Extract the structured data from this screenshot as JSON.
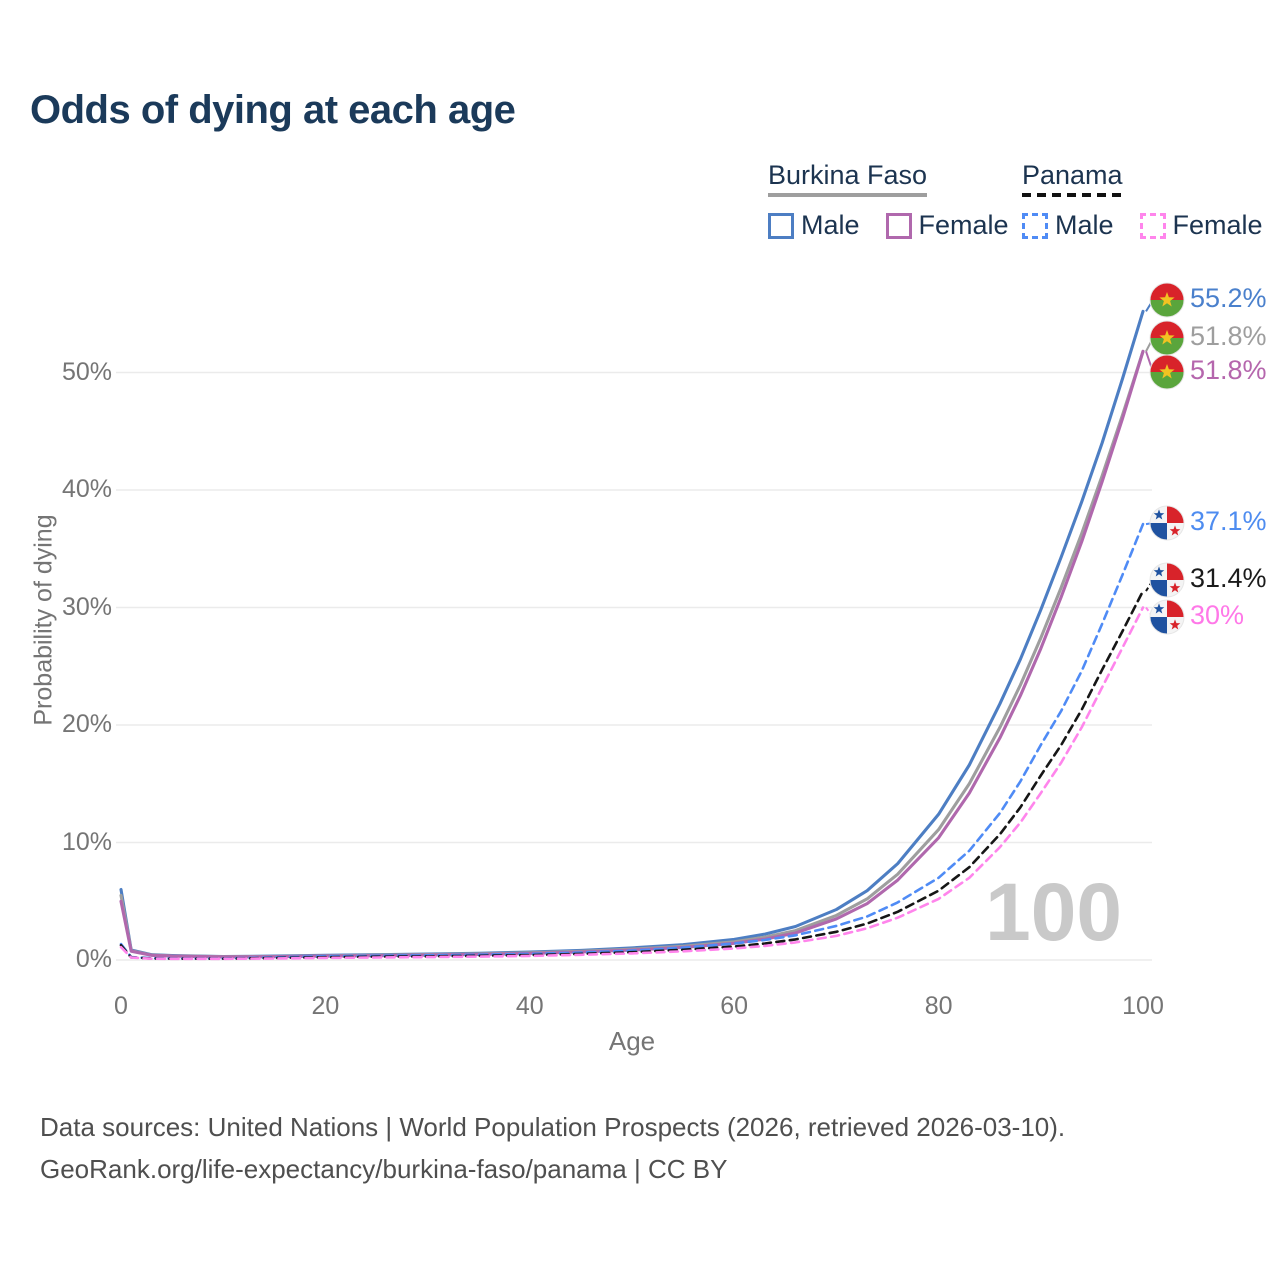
{
  "title": "Odds of dying at each age",
  "legend": {
    "groups": [
      {
        "title": "Burkina Faso",
        "line_style": "solid",
        "line_color": "#9e9e9e",
        "items": [
          {
            "label": "Male",
            "color": "#4d7ec3",
            "dashed": false
          },
          {
            "label": "Female",
            "color": "#b068ad",
            "dashed": false
          }
        ]
      },
      {
        "title": "Panama",
        "line_style": "dashed",
        "line_color": "#111111",
        "items": [
          {
            "label": "Male",
            "color": "#4f8bf5",
            "dashed": true
          },
          {
            "label": "Female",
            "color": "#ff85ec",
            "dashed": true
          }
        ]
      }
    ]
  },
  "chart_data": {
    "type": "line",
    "title": "Odds of dying at each age",
    "xlabel": "Age",
    "ylabel": "Probability of dying",
    "xlim": [
      0,
      100
    ],
    "ylim_pct": [
      0,
      56
    ],
    "x_ticks": [
      0,
      20,
      40,
      60,
      80,
      100
    ],
    "y_ticks_pct": [
      0,
      10,
      20,
      30,
      40,
      50
    ],
    "y_tick_labels": [
      "0%",
      "10%",
      "20%",
      "30%",
      "40%",
      "50%"
    ],
    "grid": "horizontal",
    "hover_age_indicator": "100",
    "ages": [
      0,
      1,
      3,
      5,
      10,
      15,
      20,
      25,
      30,
      35,
      40,
      45,
      50,
      55,
      60,
      63,
      66,
      70,
      73,
      76,
      80,
      83,
      86,
      88,
      90,
      92,
      94,
      96,
      98,
      100
    ],
    "series": [
      {
        "name": "Burkina Faso Male",
        "country": "Burkina Faso",
        "sex": "Male",
        "color": "#4d7ec3",
        "dash": "solid",
        "flag": "burkina-faso",
        "end_value": 55.2,
        "end_label": "55.2%",
        "label_color": "#4a80cc",
        "values": [
          6.0,
          0.85,
          0.45,
          0.38,
          0.3,
          0.33,
          0.4,
          0.45,
          0.5,
          0.57,
          0.67,
          0.82,
          1.03,
          1.3,
          1.75,
          2.2,
          2.85,
          4.3,
          5.9,
          8.2,
          12.4,
          16.6,
          21.8,
          25.6,
          29.8,
          34.3,
          39.0,
          44.0,
          49.5,
          55.2
        ]
      },
      {
        "name": "Burkina Faso Both sexes",
        "country": "Burkina Faso",
        "sex": "Both",
        "color": "#9e9e9e",
        "dash": "solid",
        "flag": "burkina-faso",
        "end_value": 51.8,
        "end_label": "51.8%",
        "label_color": "#9e9e9e",
        "values": [
          5.5,
          0.8,
          0.42,
          0.35,
          0.28,
          0.3,
          0.36,
          0.41,
          0.46,
          0.52,
          0.61,
          0.74,
          0.92,
          1.17,
          1.55,
          1.95,
          2.5,
          3.8,
          5.2,
          7.3,
          11.1,
          15.0,
          19.8,
          23.4,
          27.4,
          31.7,
          36.3,
          41.2,
          46.4,
          51.8
        ]
      },
      {
        "name": "Burkina Faso Female",
        "country": "Burkina Faso",
        "sex": "Female",
        "color": "#b068ad",
        "dash": "solid",
        "flag": "burkina-faso",
        "end_value": 51.8,
        "end_label": "51.8%",
        "label_color": "#b566ad",
        "values": [
          5.0,
          0.75,
          0.4,
          0.33,
          0.26,
          0.28,
          0.33,
          0.37,
          0.42,
          0.48,
          0.56,
          0.68,
          0.84,
          1.07,
          1.42,
          1.78,
          2.3,
          3.5,
          4.8,
          6.8,
          10.4,
          14.2,
          18.9,
          22.5,
          26.5,
          30.9,
          35.6,
          40.7,
          46.1,
          51.8
        ]
      },
      {
        "name": "Panama Male",
        "country": "Panama",
        "sex": "Male",
        "color": "#4f8bf5",
        "dash": "dashed",
        "flag": "panama",
        "end_value": 37.1,
        "end_label": "37.1%",
        "label_color": "#4e8cf0",
        "values": [
          1.35,
          0.25,
          0.15,
          0.13,
          0.13,
          0.22,
          0.32,
          0.37,
          0.4,
          0.45,
          0.52,
          0.63,
          0.8,
          1.05,
          1.4,
          1.7,
          2.1,
          2.9,
          3.7,
          4.9,
          7.0,
          9.3,
          12.5,
          15.2,
          18.3,
          21.2,
          24.6,
          28.6,
          32.8,
          37.1
        ]
      },
      {
        "name": "Panama Both sexes",
        "country": "Panama",
        "sex": "Both",
        "color": "#161616",
        "dash": "dashed",
        "flag": "panama",
        "end_value": 31.4,
        "end_label": "31.4%",
        "label_color": "#1b1b1b",
        "values": [
          1.25,
          0.22,
          0.13,
          0.11,
          0.11,
          0.17,
          0.24,
          0.28,
          0.31,
          0.36,
          0.42,
          0.52,
          0.66,
          0.87,
          1.15,
          1.4,
          1.75,
          2.4,
          3.1,
          4.1,
          5.9,
          7.9,
          10.7,
          13.0,
          15.7,
          18.3,
          21.3,
          24.7,
          28.0,
          31.4
        ]
      },
      {
        "name": "Panama Female",
        "country": "Panama",
        "sex": "Female",
        "color": "#ff85ec",
        "dash": "dashed",
        "flag": "panama",
        "end_value": 30.0,
        "end_label": "30%",
        "label_color": "#ff78e8",
        "values": [
          1.1,
          0.2,
          0.11,
          0.1,
          0.1,
          0.13,
          0.18,
          0.21,
          0.25,
          0.29,
          0.35,
          0.44,
          0.56,
          0.74,
          0.98,
          1.2,
          1.5,
          2.05,
          2.7,
          3.6,
          5.2,
          7.0,
          9.6,
          11.7,
          14.2,
          16.8,
          19.8,
          23.2,
          26.6,
          30.0
        ]
      }
    ]
  },
  "watermark": "100",
  "footer": {
    "line1": "Data sources: United Nations | World Population Prospects (2026, retrieved 2026-03-10).",
    "line2": "GeoRank.org/life-expectancy/burkina-faso/panama | CC BY"
  },
  "colors": {
    "title_text": "#1b3a5a",
    "axis_text": "#757575",
    "gridline": "#ebebeb",
    "watermark": "#c9c9c9",
    "footer_text": "#4f4f4f"
  }
}
